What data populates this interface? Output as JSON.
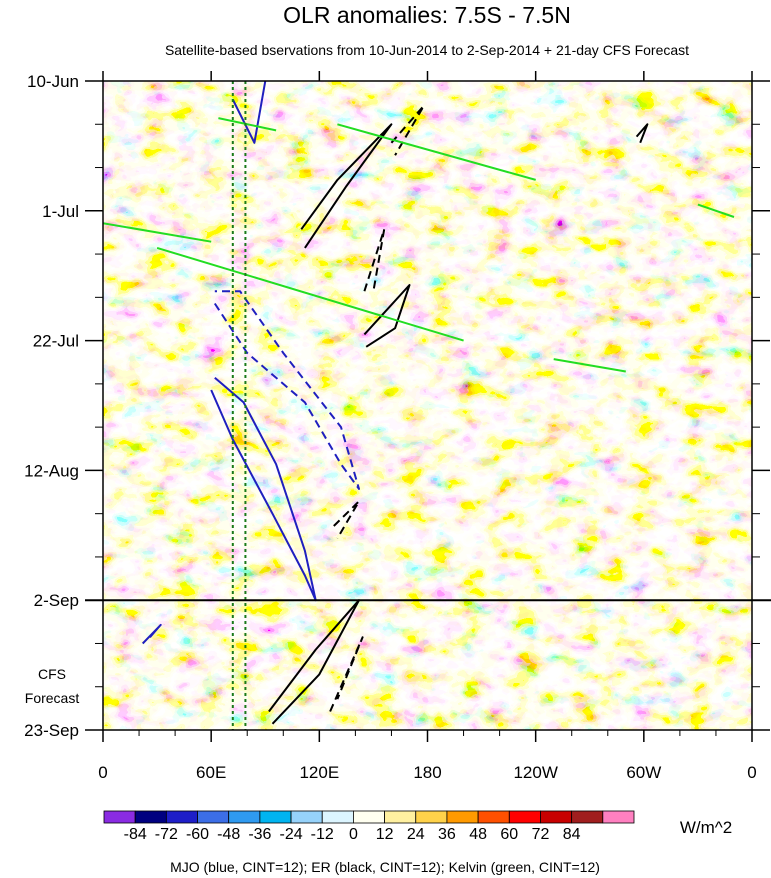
{
  "chart_data": {
    "type": "heatmap",
    "title": "OLR anomalies: 7.5S - 7.5N",
    "subtitle": "Satellite-based bservations from 10-Jun-2014 to 2-Sep-2014 + 21-day CFS Forecast",
    "x_ticks": [
      "0",
      "60E",
      "120E",
      "180",
      "120W",
      "60W",
      "0"
    ],
    "x_tick_longitudes": [
      0,
      60,
      120,
      180,
      240,
      300,
      360
    ],
    "xlim": [
      0,
      360
    ],
    "y_ticks": [
      "10-Jun",
      "1-Jul",
      "22-Jul",
      "12-Aug",
      "2-Sep",
      "23-Sep"
    ],
    "y_tick_days": [
      0,
      21,
      42,
      63,
      84,
      105
    ],
    "ylim_days": [
      0,
      105
    ],
    "observation_end": "2-Sep",
    "forecast_label": [
      "CFS",
      "Forecast"
    ],
    "colorbar": {
      "levels": [
        "-84",
        "-72",
        "-60",
        "-48",
        "-36",
        "-24",
        "-12",
        "0",
        "12",
        "24",
        "36",
        "48",
        "60",
        "72",
        "84"
      ],
      "colors": [
        "#8a2be2",
        "#000080",
        "#1e1ec8",
        "#3c6ee6",
        "#2f9af0",
        "#00b4f0",
        "#96d2fa",
        "#dcf5ff",
        "#fffff0",
        "#fff0a0",
        "#ffd24a",
        "#ff9a00",
        "#ff5000",
        "#ff0000",
        "#c80000",
        "#a01e1e",
        "#ff80c0"
      ],
      "units": "W/m^2"
    },
    "caption": "MJO (blue, CINT=12); ER (black, CINT=12); Kelvin (green, CINT=12)",
    "reference_lines_lon": [
      72,
      79
    ],
    "contours": {
      "mjo": [
        {
          "style": "solid",
          "pts": [
            [
              72,
              3
            ],
            [
              84,
              10
            ],
            [
              90,
              0
            ]
          ]
        },
        {
          "style": "solid",
          "pts": [
            [
              60,
              50
            ],
            [
              72,
              58
            ],
            [
              94,
              70
            ],
            [
              112,
              80
            ],
            [
              118,
              84
            ],
            [
              112,
              76
            ],
            [
              96,
              62
            ],
            [
              78,
              52
            ],
            [
              62,
              48
            ]
          ]
        },
        {
          "style": "dashed",
          "pts": [
            [
              62,
              36
            ],
            [
              80,
              44
            ],
            [
              112,
              52
            ],
            [
              132,
              62
            ],
            [
              142,
              66
            ],
            [
              132,
              56
            ],
            [
              100,
              44
            ],
            [
              76,
              34
            ],
            [
              62,
              34
            ]
          ]
        },
        {
          "style": "solid",
          "pts": [
            [
              22,
              91
            ],
            [
              32,
              88
            ],
            [
              26,
              90
            ]
          ]
        }
      ],
      "er": [
        {
          "style": "solid",
          "pts": [
            [
              110,
              24
            ],
            [
              130,
              16
            ],
            [
              160,
              7
            ],
            [
              135,
              17
            ],
            [
              112,
              27
            ]
          ]
        },
        {
          "style": "solid",
          "pts": [
            [
              145,
              41
            ],
            [
              170,
              33
            ],
            [
              162,
              40
            ],
            [
              146,
              43
            ]
          ]
        },
        {
          "style": "dashed",
          "pts": [
            [
              160,
              10
            ],
            [
              178,
              4
            ],
            [
              162,
              12
            ]
          ]
        },
        {
          "style": "dashed",
          "pts": [
            [
              145,
              34
            ],
            [
              156,
              24
            ],
            [
              150,
              34
            ]
          ]
        },
        {
          "style": "dashed",
          "pts": [
            [
              128,
              72
            ],
            [
              142,
              68
            ],
            [
              130,
              74
            ]
          ]
        },
        {
          "style": "solid",
          "pts": [
            [
              92,
              102
            ],
            [
              118,
              92
            ],
            [
              142,
              84
            ],
            [
              120,
              96
            ],
            [
              94,
              104
            ]
          ]
        },
        {
          "style": "dashed",
          "pts": [
            [
              126,
              102
            ],
            [
              144,
              90
            ],
            [
              130,
              100
            ]
          ]
        },
        {
          "style": "solid",
          "pts": [
            [
              296,
              9
            ],
            [
              302,
              7
            ],
            [
              298,
              10
            ]
          ]
        }
      ],
      "kelvin": [
        {
          "style": "solid",
          "pts": [
            [
              64,
              6
            ],
            [
              96,
              8
            ]
          ]
        },
        {
          "style": "solid",
          "pts": [
            [
              130,
              7
            ],
            [
              240,
              16
            ]
          ]
        },
        {
          "style": "solid",
          "pts": [
            [
              0,
              23
            ],
            [
              60,
              26
            ]
          ]
        },
        {
          "style": "solid",
          "pts": [
            [
              30,
              27
            ],
            [
              200,
              42
            ]
          ]
        },
        {
          "style": "solid",
          "pts": [
            [
              250,
              45
            ],
            [
              290,
              47
            ]
          ]
        },
        {
          "style": "solid",
          "pts": [
            [
              350,
              22
            ],
            [
              330,
              20
            ]
          ]
        }
      ]
    }
  }
}
